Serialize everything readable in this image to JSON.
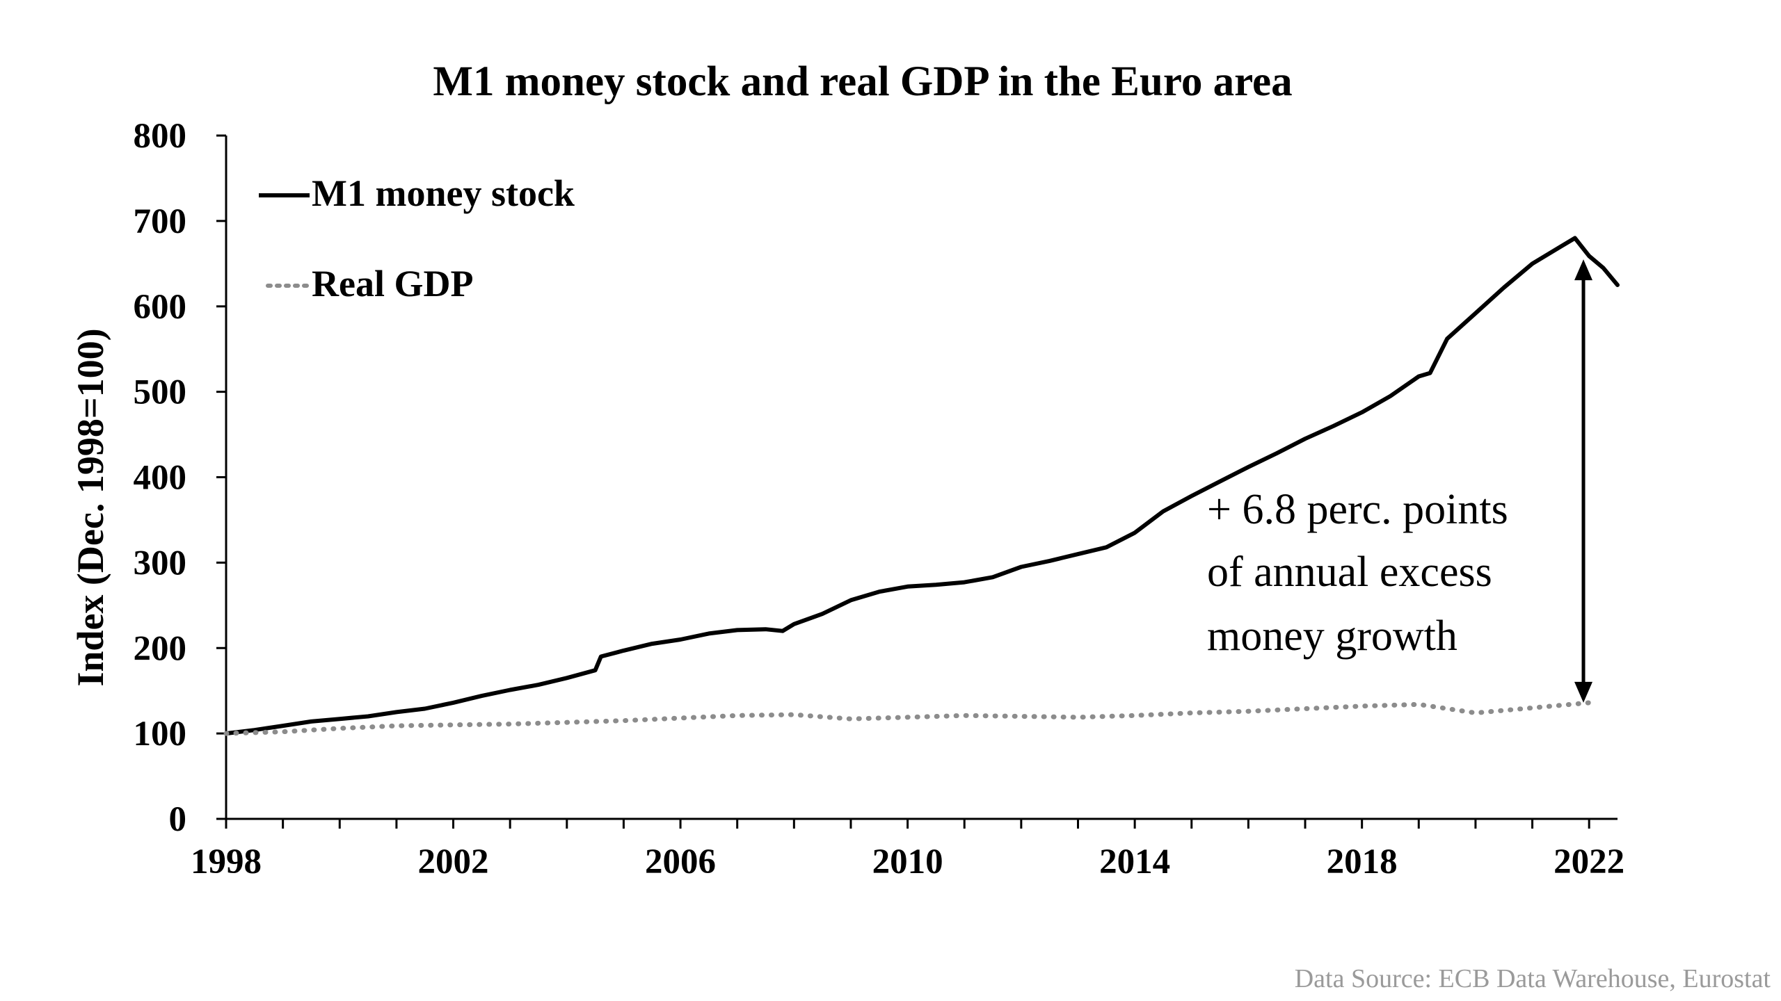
{
  "chart_data": {
    "type": "line",
    "title": "M1 money stock and real GDP in the Euro area",
    "ylabel": "Index (Dec. 1998=100)",
    "xlabel": "",
    "xlim": [
      1998,
      2022.5
    ],
    "ylim": [
      0,
      800
    ],
    "x_ticks": [
      1998,
      2002,
      2006,
      2010,
      2014,
      2018,
      2022
    ],
    "x_tick_labels": [
      "1998",
      "2002",
      "2006",
      "2010",
      "2014",
      "2018",
      "2022"
    ],
    "y_ticks": [
      0,
      100,
      200,
      300,
      400,
      500,
      600,
      700,
      800
    ],
    "y_tick_labels": [
      "0",
      "100",
      "200",
      "300",
      "400",
      "500",
      "600",
      "700",
      "800"
    ],
    "grid": false,
    "legend_position": "top-left",
    "series": [
      {
        "name": "M1 money stock",
        "style": "solid",
        "color": "#000000",
        "points": [
          [
            1998.0,
            100
          ],
          [
            1998.5,
            104
          ],
          [
            1999.0,
            109
          ],
          [
            1999.5,
            114
          ],
          [
            2000.0,
            117
          ],
          [
            2000.5,
            120
          ],
          [
            2001.0,
            125
          ],
          [
            2001.5,
            129
          ],
          [
            2002.0,
            136
          ],
          [
            2002.5,
            144
          ],
          [
            2003.0,
            151
          ],
          [
            2003.5,
            157
          ],
          [
            2004.0,
            165
          ],
          [
            2004.5,
            174
          ],
          [
            2004.6,
            190
          ],
          [
            2005.0,
            197
          ],
          [
            2005.5,
            205
          ],
          [
            2006.0,
            210
          ],
          [
            2006.5,
            217
          ],
          [
            2007.0,
            221
          ],
          [
            2007.5,
            222
          ],
          [
            2007.8,
            220
          ],
          [
            2008.0,
            228
          ],
          [
            2008.5,
            240
          ],
          [
            2009.0,
            256
          ],
          [
            2009.5,
            266
          ],
          [
            2010.0,
            272
          ],
          [
            2010.5,
            274
          ],
          [
            2011.0,
            277
          ],
          [
            2011.5,
            283
          ],
          [
            2012.0,
            295
          ],
          [
            2012.5,
            302
          ],
          [
            2013.0,
            310
          ],
          [
            2013.5,
            318
          ],
          [
            2014.0,
            335
          ],
          [
            2014.5,
            360
          ],
          [
            2015.0,
            378
          ],
          [
            2015.5,
            395
          ],
          [
            2016.0,
            412
          ],
          [
            2016.5,
            428
          ],
          [
            2017.0,
            445
          ],
          [
            2017.5,
            460
          ],
          [
            2018.0,
            476
          ],
          [
            2018.5,
            495
          ],
          [
            2019.0,
            518
          ],
          [
            2019.2,
            522
          ],
          [
            2019.5,
            562
          ],
          [
            2020.0,
            592
          ],
          [
            2020.5,
            622
          ],
          [
            2021.0,
            650
          ],
          [
            2021.5,
            670
          ],
          [
            2021.75,
            680
          ],
          [
            2022.0,
            659
          ],
          [
            2022.25,
            645
          ],
          [
            2022.5,
            625
          ]
        ]
      },
      {
        "name": "Real GDP",
        "style": "dotted",
        "color": "#8c8c8c",
        "points": [
          [
            1998.0,
            100
          ],
          [
            1999.0,
            102
          ],
          [
            2000.0,
            106
          ],
          [
            2001.0,
            109
          ],
          [
            2002.0,
            110
          ],
          [
            2003.0,
            111
          ],
          [
            2004.0,
            113
          ],
          [
            2005.0,
            115
          ],
          [
            2006.0,
            118
          ],
          [
            2007.0,
            121
          ],
          [
            2008.0,
            122
          ],
          [
            2009.0,
            117
          ],
          [
            2010.0,
            119
          ],
          [
            2011.0,
            121
          ],
          [
            2012.0,
            120
          ],
          [
            2013.0,
            119
          ],
          [
            2014.0,
            121
          ],
          [
            2015.0,
            124
          ],
          [
            2016.0,
            126
          ],
          [
            2017.0,
            129
          ],
          [
            2018.0,
            132
          ],
          [
            2019.0,
            134
          ],
          [
            2020.0,
            124
          ],
          [
            2021.0,
            130
          ],
          [
            2022.0,
            136
          ]
        ]
      }
    ],
    "annotation": {
      "lines": [
        "+ 6.8 perc. points",
        "of  annual excess",
        "money growth"
      ],
      "arrow_x": 2021.9,
      "arrow_from": 136,
      "arrow_to": 655
    }
  },
  "source_note": "Data Source: ECB Data Warehouse, Eurostat"
}
